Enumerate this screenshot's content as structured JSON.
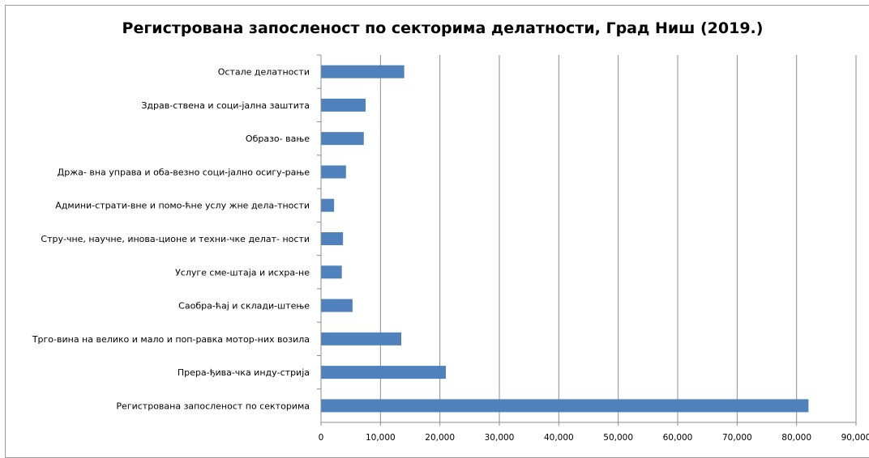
{
  "chart_data": {
    "type": "bar",
    "orientation": "horizontal",
    "title": "Регистрована запосленост по секторима делатности, Град Ниш (2019.)",
    "categories": [
      "Остале делатности",
      "Здрав-ствена и соци-јална заштита",
      "Образо- вање",
      "Држа- вна управа и оба-везно соци-јално осигу-рање",
      "Админи-страти-вне  и помо-ћне услу жне дела-тности",
      "Стру-чне,  научне, инова-ционе и техни-чке делат- ности",
      "Услуге сме-штаја и исхра-не",
      "Саобра-ћај и склади-штење",
      "Трго-вина на велико и мало и поп-равка мотор-них возила",
      "Прера-ђива-чка инду-стрија",
      "Регистрована запосленост по секторима"
    ],
    "values": [
      14000,
      7500,
      7200,
      4200,
      2200,
      3700,
      3500,
      5300,
      13500,
      21000,
      82000
    ],
    "xlim": [
      0,
      90000
    ],
    "x_ticks": [
      "0",
      "10,000",
      "20,000",
      "30,000",
      "40,000",
      "50,000",
      "60,000",
      "70,000",
      "80,000",
      "90,000"
    ],
    "grid": "vertical",
    "bar_color": "#4f81bd",
    "legend": "none"
  }
}
